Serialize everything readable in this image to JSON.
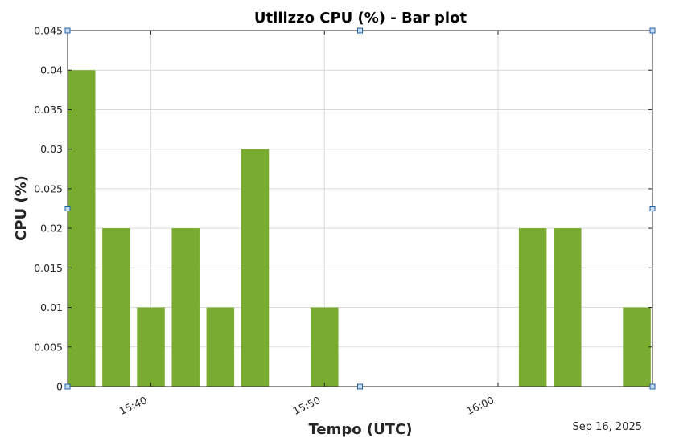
{
  "chart_data": {
    "type": "bar",
    "title": "Utilizzo CPU (%) - Bar plot",
    "xlabel": "Tempo (UTC)",
    "ylabel": "CPU (%)",
    "date_label": "Sep 16, 2025",
    "x_ticks": [
      "15:40",
      "15:50",
      "16:00"
    ],
    "x_tick_minutes": [
      40,
      50,
      60
    ],
    "xlim_minutes": [
      35.2,
      68.9
    ],
    "y_ticks": [
      "0",
      "0.005",
      "0.01",
      "0.015",
      "0.02",
      "0.025",
      "0.03",
      "0.035",
      "0.04",
      "0.045"
    ],
    "ylim": [
      0,
      0.045
    ],
    "grid": true,
    "bar_color": "#7aab31",
    "categories": [
      "15:36",
      "15:38",
      "15:40",
      "15:42",
      "15:44",
      "15:46",
      "15:48",
      "15:50",
      "15:52",
      "15:54",
      "15:56",
      "15:58",
      "16:00",
      "16:02",
      "16:04",
      "16:06",
      "16:08"
    ],
    "x_minutes": [
      36,
      38,
      40,
      42,
      44,
      46,
      48,
      50,
      52,
      54,
      56,
      58,
      60,
      62,
      64,
      66,
      68
    ],
    "values": [
      0.04,
      0.02,
      0.01,
      0.02,
      0.01,
      0.03,
      0,
      0.01,
      0,
      0,
      0,
      0,
      0,
      0.02,
      0.02,
      0,
      0.01
    ]
  }
}
